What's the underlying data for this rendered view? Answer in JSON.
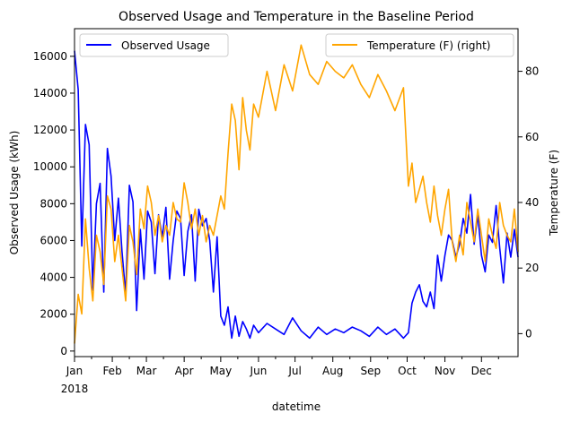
{
  "chart_data": {
    "type": "line",
    "title": "Observed Usage and Temperature in the Baseline Period",
    "xlabel": "datetime",
    "ylabel_left": "Observed Usage (kWh)",
    "ylabel_right": "Temperature (F)",
    "x_tick_labels": [
      "Jan",
      "Feb",
      "Mar",
      "Apr",
      "May",
      "Jun",
      "Jul",
      "Aug",
      "Sep",
      "Oct",
      "Nov",
      "Dec"
    ],
    "x_year_label": "2018",
    "x_range": [
      "2018-01-01",
      "2018-12-31"
    ],
    "y_left_range": [
      -300,
      17500
    ],
    "y_left_ticks": [
      0,
      2000,
      4000,
      6000,
      8000,
      10000,
      12000,
      14000,
      16000
    ],
    "y_left_tick_labels": [
      "0",
      "2000",
      "4000",
      "6000",
      "8000",
      "10000",
      "12000",
      "14000",
      "16000"
    ],
    "y_right_range": [
      -7,
      93
    ],
    "y_right_ticks": [
      0,
      20,
      40,
      60,
      80
    ],
    "y_right_tick_labels": [
      "0",
      "20",
      "40",
      "60",
      "80"
    ],
    "grid": false,
    "legend_left": {
      "placement": "top-left",
      "label": "Observed Usage"
    },
    "legend_right": {
      "placement": "top-right",
      "label": "Temperature (F) (right)"
    },
    "colors": {
      "usage": "#0000ff",
      "temperature": "#ffa500"
    },
    "series": [
      {
        "name": "Observed Usage",
        "axis": "left",
        "x": [
          "2018-01-01",
          "2018-01-04",
          "2018-01-07",
          "2018-01-10",
          "2018-01-13",
          "2018-01-16",
          "2018-01-19",
          "2018-01-22",
          "2018-01-25",
          "2018-01-28",
          "2018-01-31",
          "2018-02-03",
          "2018-02-06",
          "2018-02-09",
          "2018-02-12",
          "2018-02-15",
          "2018-02-18",
          "2018-02-21",
          "2018-02-24",
          "2018-02-27",
          "2018-03-02",
          "2018-03-05",
          "2018-03-08",
          "2018-03-11",
          "2018-03-14",
          "2018-03-17",
          "2018-03-20",
          "2018-03-23",
          "2018-03-26",
          "2018-03-29",
          "2018-04-01",
          "2018-04-04",
          "2018-04-07",
          "2018-04-10",
          "2018-04-13",
          "2018-04-16",
          "2018-04-19",
          "2018-04-22",
          "2018-04-25",
          "2018-04-28",
          "2018-05-01",
          "2018-05-04",
          "2018-05-07",
          "2018-05-10",
          "2018-05-13",
          "2018-05-16",
          "2018-05-19",
          "2018-05-22",
          "2018-05-25",
          "2018-05-28",
          "2018-06-01",
          "2018-06-08",
          "2018-06-15",
          "2018-06-22",
          "2018-06-29",
          "2018-07-06",
          "2018-07-13",
          "2018-07-20",
          "2018-07-27",
          "2018-08-03",
          "2018-08-10",
          "2018-08-17",
          "2018-08-24",
          "2018-08-31",
          "2018-09-07",
          "2018-09-14",
          "2018-09-21",
          "2018-09-28",
          "2018-10-02",
          "2018-10-05",
          "2018-10-08",
          "2018-10-11",
          "2018-10-14",
          "2018-10-17",
          "2018-10-20",
          "2018-10-23",
          "2018-10-26",
          "2018-10-29",
          "2018-11-01",
          "2018-11-04",
          "2018-11-07",
          "2018-11-10",
          "2018-11-13",
          "2018-11-16",
          "2018-11-19",
          "2018-11-22",
          "2018-11-25",
          "2018-11-28",
          "2018-12-01",
          "2018-12-04",
          "2018-12-07",
          "2018-12-10",
          "2018-12-13",
          "2018-12-16",
          "2018-12-19",
          "2018-12-22",
          "2018-12-25",
          "2018-12-28",
          "2018-12-31"
        ],
        "values": [
          16300,
          14200,
          5700,
          12300,
          11200,
          3300,
          8000,
          9100,
          3200,
          11000,
          9500,
          6000,
          8300,
          5400,
          3100,
          9000,
          8100,
          2200,
          6600,
          3900,
          7600,
          7000,
          4200,
          7400,
          6200,
          7800,
          3900,
          6000,
          7600,
          7200,
          4100,
          6500,
          7400,
          3800,
          7700,
          6800,
          7200,
          6000,
          3200,
          6200,
          1900,
          1400,
          2400,
          700,
          1900,
          800,
          1600,
          1200,
          700,
          1400,
          1000,
          1500,
          1200,
          900,
          1800,
          1100,
          700,
          1300,
          900,
          1200,
          1000,
          1300,
          1100,
          800,
          1300,
          900,
          1200,
          700,
          1000,
          2600,
          3200,
          3600,
          2700,
          2400,
          3200,
          2300,
          5200,
          3800,
          5200,
          6300,
          6000,
          5100,
          5800,
          7200,
          6400,
          8500,
          5800,
          7400,
          5200,
          4300,
          6300,
          5900,
          7900,
          5600,
          3700,
          6400,
          5100,
          6600,
          5100
        ]
      },
      {
        "name": "Temperature (F) (right)",
        "axis": "right",
        "x": [
          "2018-01-01",
          "2018-01-04",
          "2018-01-07",
          "2018-01-10",
          "2018-01-13",
          "2018-01-16",
          "2018-01-19",
          "2018-01-22",
          "2018-01-25",
          "2018-01-28",
          "2018-01-31",
          "2018-02-03",
          "2018-02-06",
          "2018-02-09",
          "2018-02-12",
          "2018-02-15",
          "2018-02-18",
          "2018-02-21",
          "2018-02-24",
          "2018-02-27",
          "2018-03-02",
          "2018-03-05",
          "2018-03-08",
          "2018-03-11",
          "2018-03-14",
          "2018-03-17",
          "2018-03-20",
          "2018-03-23",
          "2018-03-26",
          "2018-03-29",
          "2018-04-01",
          "2018-04-04",
          "2018-04-07",
          "2018-04-10",
          "2018-04-13",
          "2018-04-16",
          "2018-04-19",
          "2018-04-22",
          "2018-04-25",
          "2018-04-28",
          "2018-05-01",
          "2018-05-04",
          "2018-05-07",
          "2018-05-10",
          "2018-05-13",
          "2018-05-16",
          "2018-05-19",
          "2018-05-22",
          "2018-05-25",
          "2018-05-28",
          "2018-06-01",
          "2018-06-08",
          "2018-06-15",
          "2018-06-22",
          "2018-06-29",
          "2018-07-06",
          "2018-07-13",
          "2018-07-20",
          "2018-07-27",
          "2018-08-03",
          "2018-08-10",
          "2018-08-17",
          "2018-08-24",
          "2018-08-31",
          "2018-09-07",
          "2018-09-14",
          "2018-09-21",
          "2018-09-28",
          "2018-10-02",
          "2018-10-05",
          "2018-10-08",
          "2018-10-11",
          "2018-10-14",
          "2018-10-17",
          "2018-10-20",
          "2018-10-23",
          "2018-10-26",
          "2018-10-29",
          "2018-11-01",
          "2018-11-04",
          "2018-11-07",
          "2018-11-10",
          "2018-11-13",
          "2018-11-16",
          "2018-11-19",
          "2018-11-22",
          "2018-11-25",
          "2018-11-28",
          "2018-12-01",
          "2018-12-04",
          "2018-12-07",
          "2018-12-10",
          "2018-12-13",
          "2018-12-16",
          "2018-12-19",
          "2018-12-22",
          "2018-12-25",
          "2018-12-28",
          "2018-12-31"
        ],
        "values": [
          -3,
          12,
          6,
          35,
          20,
          10,
          30,
          25,
          15,
          42,
          38,
          22,
          30,
          20,
          10,
          33,
          28,
          18,
          38,
          32,
          45,
          40,
          30,
          36,
          28,
          33,
          30,
          40,
          35,
          34,
          46,
          40,
          32,
          38,
          30,
          36,
          28,
          33,
          30,
          36,
          42,
          38,
          55,
          70,
          65,
          50,
          72,
          62,
          56,
          70,
          66,
          80,
          68,
          82,
          74,
          88,
          79,
          76,
          83,
          80,
          78,
          82,
          76,
          72,
          79,
          74,
          68,
          75,
          45,
          52,
          40,
          44,
          48,
          40,
          34,
          45,
          36,
          30,
          38,
          44,
          28,
          22,
          30,
          24,
          40,
          34,
          28,
          38,
          30,
          22,
          35,
          30,
          26,
          40,
          33,
          30,
          28,
          38,
          25
        ]
      }
    ]
  }
}
